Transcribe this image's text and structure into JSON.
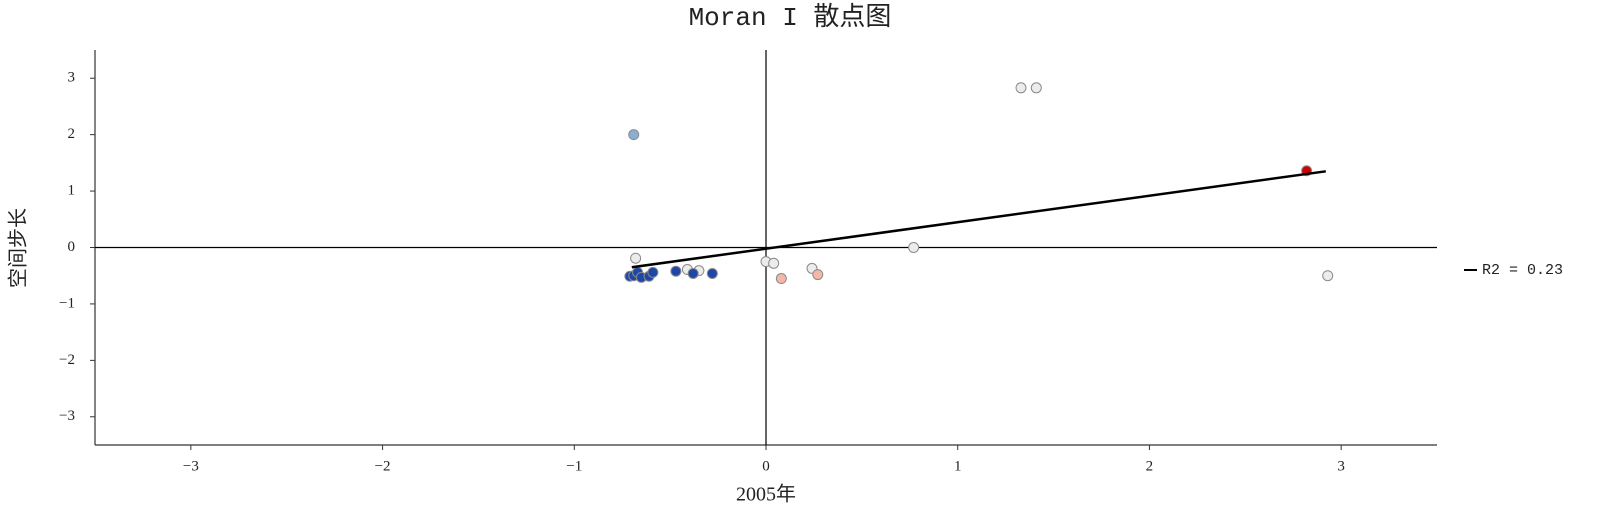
{
  "chart_data": {
    "type": "scatter",
    "title": "Moran I 散点图",
    "x_label": "2005年",
    "y_label": "空间步长",
    "xlim": [
      -3.5,
      3.5
    ],
    "ylim": [
      -3.5,
      3.5
    ],
    "xticks": [
      {
        "value": -3,
        "label": "−3"
      },
      {
        "value": -2,
        "label": "−2"
      },
      {
        "value": -1,
        "label": "−1"
      },
      0,
      1,
      2,
      3
    ],
    "yticks": [
      {
        "value": -3,
        "label": "−3"
      },
      {
        "value": -2,
        "label": "−2"
      },
      {
        "value": -1,
        "label": "−1"
      },
      0,
      1,
      2,
      3
    ],
    "hline": 0,
    "vline": 0,
    "series": [
      {
        "color": "#8caed2",
        "x": [
          -0.69
        ],
        "y": [
          2.0
        ]
      },
      {
        "color": "#ececec",
        "x": [
          1.33,
          1.41,
          0.77,
          2.93,
          -0.68,
          0.0,
          0.04,
          0.24,
          -0.41,
          -0.35
        ],
        "y": [
          2.83,
          2.83,
          0.0,
          -0.5,
          -0.19,
          -0.25,
          -0.28,
          -0.37,
          -0.39,
          -0.41
        ]
      },
      {
        "color": "#d40000",
        "x": [
          2.82
        ],
        "y": [
          1.36
        ]
      },
      {
        "color": "#f4b6a6",
        "x": [
          0.08,
          0.27
        ],
        "y": [
          -0.55,
          -0.48
        ]
      },
      {
        "color": "#1f47a8",
        "x": [
          -0.71,
          -0.69,
          -0.67,
          -0.65,
          -0.61,
          -0.59,
          -0.47,
          -0.38,
          -0.28
        ],
        "y": [
          -0.51,
          -0.5,
          -0.44,
          -0.53,
          -0.51,
          -0.44,
          -0.42,
          -0.46,
          -0.46
        ]
      }
    ],
    "fit": {
      "name": "R2 = 0.23",
      "color": "#000000",
      "x": [
        -0.7,
        2.92
      ],
      "y": [
        -0.35,
        1.35
      ]
    }
  }
}
